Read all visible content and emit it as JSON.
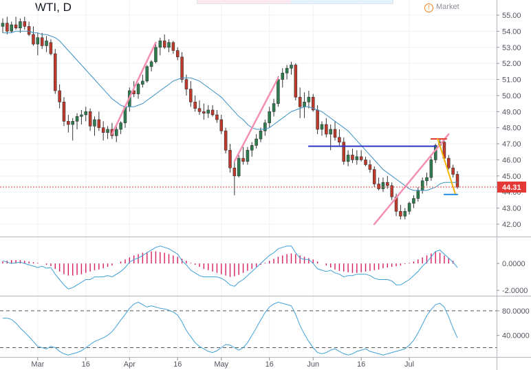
{
  "header": {
    "symbol": "WTI, D",
    "market_label": "Market",
    "market_icon": "warning-circle-icon"
  },
  "colors": {
    "up": "#2e7d4f",
    "down": "#c0392b",
    "ma": "#3b8fc4",
    "grid": "#eef0f3",
    "price_tag": "#e53935",
    "pink": "#f48fb1",
    "blue_line": "#2d35c9",
    "red_line": "#e53935",
    "orange_line": "#f4b400",
    "cyan_line": "#1e88e5",
    "hist": "#d81b60",
    "stoch": "#3fa0d8"
  },
  "chart_data": [
    {
      "type": "candlestick",
      "title": "WTI, D",
      "ylim": [
        41.4,
        55.6
      ],
      "y_ticks": [
        "55.00",
        "54.00",
        "53.00",
        "52.00",
        "51.00",
        "50.00",
        "49.00",
        "48.00",
        "47.00",
        "46.00",
        "45.00",
        "44.00",
        "43.00",
        "42.00"
      ],
      "last_price": "44.31",
      "x_ticks": [
        "Mar",
        "16",
        "Apr",
        "16",
        "May",
        "16",
        "Jun",
        "16",
        "Jul"
      ],
      "ohlc": [
        [
          54.3,
          54.8,
          53.9,
          54.5
        ],
        [
          54.5,
          54.9,
          53.8,
          54.0
        ],
        [
          54.0,
          54.6,
          53.9,
          54.4
        ],
        [
          54.4,
          54.9,
          54.1,
          54.2
        ],
        [
          54.2,
          54.8,
          53.9,
          54.6
        ],
        [
          54.6,
          54.9,
          54.1,
          54.3
        ],
        [
          54.3,
          54.6,
          53.7,
          53.8
        ],
        [
          53.8,
          54.3,
          53.1,
          53.2
        ],
        [
          53.2,
          53.9,
          52.5,
          53.6
        ],
        [
          53.6,
          53.9,
          52.9,
          53.1
        ],
        [
          53.1,
          53.7,
          52.7,
          53.4
        ],
        [
          53.3,
          53.5,
          52.5,
          52.6
        ],
        [
          52.6,
          52.9,
          50.1,
          50.3
        ],
        [
          50.3,
          50.7,
          49.2,
          49.6
        ],
        [
          49.6,
          49.9,
          48.1,
          48.4
        ],
        [
          48.4,
          48.8,
          47.7,
          48.2
        ],
        [
          48.2,
          48.6,
          47.2,
          48.4
        ],
        [
          48.4,
          48.9,
          47.9,
          48.7
        ],
        [
          48.7,
          49.1,
          48.2,
          48.8
        ],
        [
          48.8,
          49.3,
          48.4,
          49.0
        ],
        [
          49.0,
          49.2,
          47.8,
          48.1
        ],
        [
          48.1,
          48.7,
          47.5,
          48.5
        ],
        [
          48.5,
          49.0,
          47.8,
          48.0
        ],
        [
          48.0,
          48.4,
          47.2,
          47.7
        ],
        [
          47.7,
          48.1,
          47.3,
          47.9
        ],
        [
          47.9,
          48.3,
          47.3,
          47.5
        ],
        [
          47.5,
          48.2,
          47.1,
          47.9
        ],
        [
          47.9,
          48.4,
          47.6,
          48.3
        ],
        [
          48.3,
          49.4,
          48.0,
          49.3
        ],
        [
          49.3,
          50.5,
          49.0,
          50.3
        ],
        [
          50.3,
          50.9,
          49.9,
          50.1
        ],
        [
          50.1,
          50.8,
          49.8,
          50.7
        ],
        [
          50.7,
          51.3,
          50.5,
          50.9
        ],
        [
          50.9,
          51.9,
          50.8,
          51.8
        ],
        [
          51.8,
          52.2,
          51.5,
          52.1
        ],
        [
          52.1,
          53.2,
          52.0,
          53.0
        ],
        [
          53.0,
          53.6,
          52.5,
          53.4
        ],
        [
          53.4,
          53.8,
          52.9,
          53.0
        ],
        [
          53.0,
          53.5,
          52.7,
          53.3
        ],
        [
          53.3,
          53.4,
          52.6,
          52.8
        ],
        [
          52.8,
          53.0,
          52.2,
          52.4
        ],
        [
          52.4,
          52.7,
          50.8,
          51.0
        ],
        [
          51.0,
          51.3,
          50.0,
          50.4
        ],
        [
          50.4,
          50.9,
          49.3,
          49.6
        ],
        [
          49.6,
          50.0,
          49.0,
          49.2
        ],
        [
          49.2,
          49.7,
          48.8,
          49.0
        ],
        [
          49.0,
          49.5,
          48.5,
          48.9
        ],
        [
          48.9,
          49.4,
          48.6,
          49.1
        ],
        [
          49.1,
          49.4,
          48.7,
          48.8
        ],
        [
          48.8,
          49.1,
          48.3,
          48.5
        ],
        [
          48.5,
          48.8,
          47.6,
          47.8
        ],
        [
          47.8,
          48.0,
          46.4,
          46.6
        ],
        [
          46.6,
          47.0,
          45.2,
          45.5
        ],
        [
          45.5,
          45.9,
          43.8,
          45.0
        ],
        [
          45.0,
          46.3,
          44.9,
          46.1
        ],
        [
          46.1,
          46.8,
          45.7,
          45.9
        ],
        [
          45.9,
          46.8,
          45.7,
          46.6
        ],
        [
          46.6,
          47.1,
          46.2,
          46.9
        ],
        [
          46.9,
          47.6,
          46.7,
          47.3
        ],
        [
          47.3,
          48.0,
          47.1,
          47.8
        ],
        [
          47.8,
          48.5,
          47.5,
          48.3
        ],
        [
          48.3,
          49.3,
          48.0,
          49.0
        ],
        [
          49.0,
          49.8,
          48.7,
          49.5
        ],
        [
          49.5,
          51.2,
          49.3,
          51.0
        ],
        [
          51.0,
          51.7,
          50.5,
          51.4
        ],
        [
          51.4,
          51.9,
          51.0,
          51.7
        ],
        [
          51.7,
          52.1,
          51.3,
          51.9
        ],
        [
          51.9,
          52.0,
          49.7,
          49.9
        ],
        [
          49.9,
          50.5,
          48.6,
          49.3
        ],
        [
          49.3,
          50.2,
          48.6,
          49.6
        ],
        [
          49.6,
          50.3,
          49.2,
          49.9
        ],
        [
          49.9,
          50.1,
          49.0,
          49.1
        ],
        [
          49.1,
          49.4,
          47.6,
          47.9
        ],
        [
          47.9,
          48.4,
          47.5,
          48.2
        ],
        [
          48.2,
          48.6,
          47.4,
          47.6
        ],
        [
          47.6,
          48.2,
          46.6,
          47.9
        ],
        [
          47.9,
          48.4,
          47.2,
          47.4
        ],
        [
          47.4,
          47.9,
          46.9,
          47.1
        ],
        [
          47.1,
          47.4,
          45.7,
          45.9
        ],
        [
          45.9,
          46.6,
          45.6,
          46.3
        ],
        [
          46.3,
          46.7,
          45.8,
          46.0
        ],
        [
          46.0,
          46.6,
          45.7,
          46.2
        ],
        [
          46.2,
          46.6,
          45.9,
          46.0
        ],
        [
          46.0,
          46.2,
          45.6,
          45.7
        ],
        [
          45.7,
          46.0,
          45.2,
          45.4
        ],
        [
          45.4,
          45.6,
          44.3,
          44.5
        ],
        [
          44.5,
          44.9,
          44.1,
          44.2
        ],
        [
          44.2,
          44.9,
          44.0,
          44.6
        ],
        [
          44.6,
          45.0,
          44.2,
          44.4
        ],
        [
          44.4,
          44.6,
          43.5,
          43.7
        ],
        [
          43.7,
          43.9,
          42.5,
          42.8
        ],
        [
          42.8,
          43.2,
          42.3,
          42.5
        ],
        [
          42.5,
          43.0,
          42.3,
          42.8
        ],
        [
          42.8,
          43.4,
          42.6,
          43.3
        ],
        [
          43.3,
          43.8,
          43.0,
          43.6
        ],
        [
          43.6,
          44.3,
          43.4,
          44.1
        ],
        [
          44.1,
          44.9,
          43.9,
          44.7
        ],
        [
          44.7,
          45.2,
          44.4,
          44.9
        ],
        [
          44.9,
          46.2,
          44.7,
          46.0
        ],
        [
          46.0,
          47.0,
          45.8,
          46.9
        ],
        [
          46.9,
          47.3,
          46.8,
          47.1
        ],
        [
          47.1,
          47.2,
          45.9,
          46.1
        ],
        [
          46.1,
          46.3,
          45.4,
          45.5
        ],
        [
          45.5,
          45.7,
          44.9,
          45.1
        ],
        [
          45.1,
          45.3,
          44.2,
          44.3
        ]
      ],
      "ma": [
        53.9,
        53.9,
        53.9,
        54.0,
        54.0,
        54.0,
        54.0,
        53.9,
        53.9,
        53.8,
        53.8,
        53.7,
        53.6,
        53.4,
        53.1,
        52.8,
        52.5,
        52.2,
        51.9,
        51.6,
        51.3,
        51.0,
        50.7,
        50.4,
        50.1,
        49.8,
        49.6,
        49.4,
        49.3,
        49.3,
        49.3,
        49.4,
        49.5,
        49.7,
        49.9,
        50.1,
        50.3,
        50.5,
        50.7,
        50.9,
        51.0,
        51.1,
        51.1,
        51.1,
        51.0,
        50.9,
        50.7,
        50.5,
        50.3,
        50.1,
        49.9,
        49.6,
        49.3,
        49.0,
        48.7,
        48.5,
        48.2,
        48.0,
        47.9,
        47.9,
        47.9,
        48.0,
        48.2,
        48.4,
        48.6,
        48.8,
        49.0,
        49.1,
        49.2,
        49.3,
        49.3,
        49.2,
        49.1,
        49.0,
        48.8,
        48.6,
        48.4,
        48.2,
        48.0,
        47.8,
        47.5,
        47.2,
        46.9,
        46.6,
        46.3,
        46.0,
        45.7,
        45.4,
        45.2,
        45.0,
        44.8,
        44.6,
        44.4,
        44.2,
        44.1,
        44.1,
        44.1,
        44.1,
        44.2,
        44.3,
        44.5,
        44.6,
        44.6,
        44.6,
        44.6
      ]
    },
    {
      "type": "bar",
      "name": "oscillator",
      "y_ticks": [
        "0.0000",
        "-2.0000"
      ],
      "ylim": [
        -2.3,
        1.8
      ],
      "histogram": [
        0.15,
        0.2,
        0.25,
        0.25,
        0.25,
        0.2,
        0.15,
        0.1,
        0.05,
        0.0,
        -0.1,
        -0.2,
        -0.4,
        -0.6,
        -0.8,
        -0.9,
        -0.9,
        -0.85,
        -0.8,
        -0.7,
        -0.6,
        -0.5,
        -0.45,
        -0.35,
        -0.25,
        -0.15,
        0.0,
        0.15,
        0.3,
        0.45,
        0.6,
        0.7,
        0.8,
        0.85,
        0.9,
        0.9,
        0.85,
        0.8,
        0.7,
        0.6,
        0.5,
        0.35,
        0.2,
        0.05,
        -0.1,
        -0.25,
        -0.4,
        -0.5,
        -0.6,
        -0.7,
        -0.8,
        -0.9,
        -1.0,
        -0.95,
        -0.85,
        -0.7,
        -0.55,
        -0.4,
        -0.25,
        -0.1,
        0.05,
        0.2,
        0.35,
        0.5,
        0.6,
        0.7,
        0.75,
        0.7,
        0.6,
        0.5,
        0.4,
        0.3,
        0.15,
        0.0,
        -0.15,
        -0.3,
        -0.45,
        -0.55,
        -0.6,
        -0.65,
        -0.7,
        -0.7,
        -0.65,
        -0.6,
        -0.55,
        -0.5,
        -0.45,
        -0.35,
        -0.3,
        -0.25,
        -0.2,
        -0.15,
        -0.05,
        0.05,
        0.15,
        0.3,
        0.45,
        0.6,
        0.75,
        0.85,
        0.8,
        0.6,
        0.4,
        0.2,
        0.0
      ],
      "line": [
        0.2,
        0.1,
        0.0,
        0.05,
        0.1,
        0.0,
        -0.1,
        -0.2,
        -0.3,
        -0.2,
        -0.35,
        -0.3,
        -0.8,
        -1.2,
        -1.6,
        -1.9,
        -1.8,
        -1.6,
        -1.4,
        -1.2,
        -1.2,
        -1.0,
        -1.0,
        -1.0,
        -0.9,
        -1.0,
        -0.8,
        -0.6,
        -0.3,
        0.1,
        0.3,
        0.4,
        0.6,
        0.8,
        1.0,
        1.2,
        1.3,
        1.2,
        1.1,
        0.9,
        0.7,
        0.2,
        -0.1,
        -0.5,
        -0.7,
        -0.9,
        -1.0,
        -1.0,
        -1.0,
        -1.0,
        -1.1,
        -1.3,
        -1.6,
        -1.7,
        -1.4,
        -1.2,
        -0.9,
        -0.6,
        -0.3,
        0.0,
        0.3,
        0.6,
        0.8,
        1.1,
        1.2,
        1.3,
        1.3,
        0.8,
        0.4,
        0.3,
        0.3,
        0.0,
        -0.4,
        -0.5,
        -0.6,
        -0.5,
        -0.7,
        -0.8,
        -1.0,
        -0.9,
        -0.9,
        -0.8,
        -0.8,
        -0.8,
        -0.9,
        -1.1,
        -1.2,
        -1.2,
        -1.2,
        -1.3,
        -1.6,
        -1.6,
        -1.4,
        -1.2,
        -0.9,
        -0.6,
        -0.2,
        0.1,
        0.5,
        0.9,
        1.0,
        0.7,
        0.4,
        0.1,
        -0.3
      ]
    },
    {
      "type": "line",
      "name": "stochastic",
      "y_ticks": [
        "80.0000",
        "40.0000"
      ],
      "levels": [
        80,
        20
      ],
      "ylim": [
        6,
        100
      ],
      "values": [
        68,
        68,
        66,
        60,
        52,
        45,
        38,
        30,
        22,
        20,
        18,
        22,
        20,
        14,
        10,
        8,
        10,
        12,
        15,
        20,
        25,
        30,
        33,
        36,
        40,
        46,
        55,
        65,
        74,
        84,
        91,
        94,
        90,
        86,
        88,
        86,
        84,
        83,
        81,
        78,
        73,
        62,
        48,
        38,
        28,
        22,
        18,
        14,
        12,
        15,
        20,
        25,
        24,
        20,
        16,
        20,
        28,
        40,
        52,
        65,
        77,
        86,
        91,
        94,
        92,
        90,
        88,
        74,
        56,
        42,
        30,
        20,
        12,
        10,
        12,
        16,
        18,
        14,
        10,
        8,
        10,
        14,
        16,
        18,
        14,
        12,
        10,
        8,
        10,
        12,
        14,
        16,
        18,
        24,
        32,
        44,
        58,
        72,
        82,
        90,
        92,
        86,
        70,
        52,
        36
      ]
    }
  ]
}
